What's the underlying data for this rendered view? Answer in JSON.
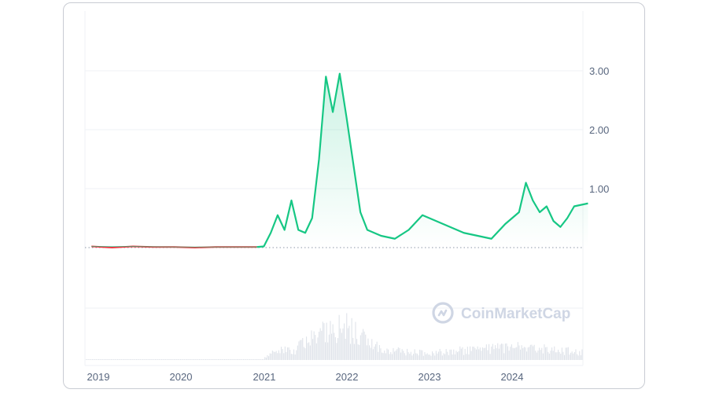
{
  "colors": {
    "up": "#16c784",
    "down": "#ea3943",
    "grid": "#eff2f5",
    "text": "#58667e",
    "volume": "#dfe3ea"
  },
  "watermark": {
    "brand_text": "CoinMarketCap",
    "icon": "coinmarketcap-logo-icon"
  },
  "chart_data": {
    "type": "line",
    "x_ticks": [
      "2019",
      "2020",
      "2021",
      "2022",
      "2023",
      "2024"
    ],
    "y_ticks": [
      "1.00",
      "2.00",
      "3.00"
    ],
    "ylim": [
      0,
      3.3
    ],
    "grid": true,
    "baseline": {
      "value": 0.0,
      "style": "dotted"
    },
    "series": [
      {
        "x": [
          "2018-12",
          "2019-03",
          "2019-06",
          "2019-09",
          "2019-12",
          "2020-03",
          "2020-06",
          "2020-09",
          "2020-12",
          "2021-01",
          "2021-02",
          "2021-03",
          "2021-04",
          "2021-05",
          "2021-06",
          "2021-07",
          "2021-08",
          "2021-09",
          "2021-10",
          "2021-11",
          "2021-12",
          "2022-01",
          "2022-02",
          "2022-03",
          "2022-04",
          "2022-05",
          "2022-06",
          "2022-08",
          "2022-10",
          "2022-12",
          "2023-02",
          "2023-04",
          "2023-06",
          "2023-08",
          "2023-10",
          "2023-12",
          "2024-02",
          "2024-03",
          "2024-04",
          "2024-05",
          "2024-06",
          "2024-07",
          "2024-08",
          "2024-09",
          "2024-10",
          "2024-12"
        ],
        "values": [
          0.02,
          0.0,
          0.02,
          0.01,
          0.01,
          0.0,
          0.01,
          0.01,
          0.01,
          0.02,
          0.25,
          0.55,
          0.3,
          0.8,
          0.3,
          0.25,
          0.5,
          1.5,
          2.9,
          2.3,
          2.95,
          2.2,
          1.4,
          0.6,
          0.3,
          0.25,
          0.2,
          0.15,
          0.3,
          0.55,
          0.45,
          0.35,
          0.25,
          0.2,
          0.15,
          0.4,
          0.6,
          1.1,
          0.8,
          0.6,
          0.7,
          0.45,
          0.35,
          0.5,
          0.7,
          0.75
        ]
      }
    ],
    "volume": {
      "x": [
        "2021-01",
        "2021-03",
        "2021-05",
        "2021-09",
        "2021-11",
        "2022-01",
        "2022-03",
        "2022-06",
        "2023-01",
        "2023-03",
        "2024-03",
        "2024-12"
      ],
      "values": [
        0.05,
        0.35,
        0.25,
        0.8,
        0.9,
        1.0,
        0.7,
        0.3,
        0.2,
        0.25,
        0.4,
        0.2
      ]
    }
  }
}
